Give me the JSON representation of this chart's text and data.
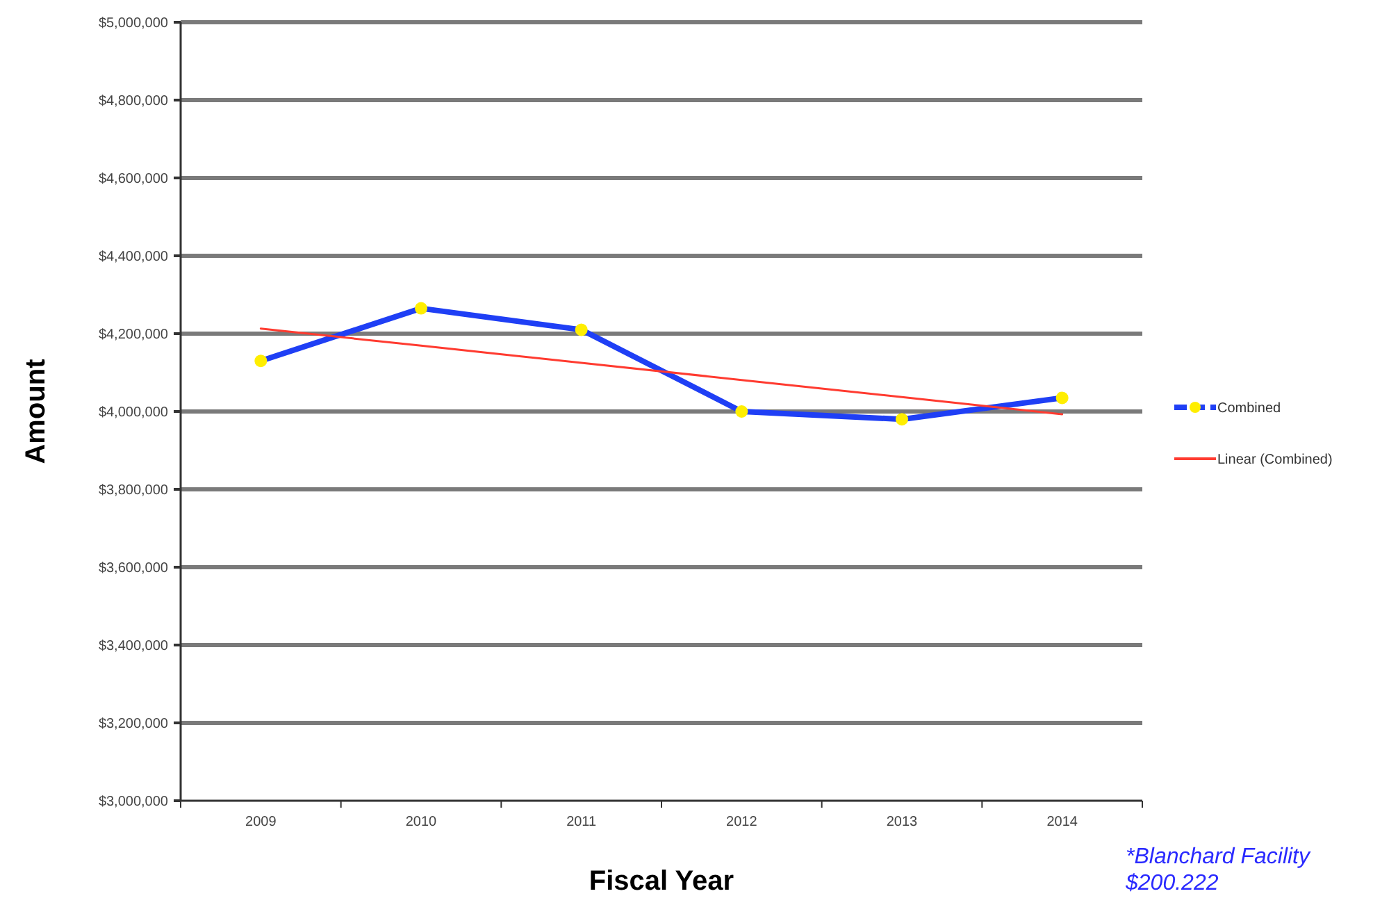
{
  "chart_data": {
    "type": "line",
    "xlabel": "Fiscal Year",
    "ylabel": "Amount",
    "categories": [
      "2009",
      "2010",
      "2011",
      "2012",
      "2013",
      "2014"
    ],
    "series": [
      {
        "name": "Combined",
        "color": "#1f3ff5",
        "values": [
          4130000,
          4265000,
          4210000,
          4000000,
          3980000,
          4035000
        ],
        "marker": "circle"
      },
      {
        "name": "Linear (Combined)",
        "color": "#ff3b30",
        "values": [
          4213000,
          4169000,
          4125000,
          4081000,
          4037000,
          3993000
        ],
        "marker": "none"
      }
    ],
    "ylim": [
      3000000,
      5000000
    ],
    "yticks": [
      {
        "value": 3000000,
        "label": "$3,000,000"
      },
      {
        "value": 3200000,
        "label": "$3,200,000"
      },
      {
        "value": 3400000,
        "label": "$3,400,000"
      },
      {
        "value": 3600000,
        "label": "$3,600,000"
      },
      {
        "value": 3800000,
        "label": "$3,800,000"
      },
      {
        "value": 4000000,
        "label": "$4,000,000"
      },
      {
        "value": 4200000,
        "label": "$4,200,000"
      },
      {
        "value": 4400000,
        "label": "$4,400,000"
      },
      {
        "value": 4600000,
        "label": "$4,600,000"
      },
      {
        "value": 4800000,
        "label": "$4,800,000"
      },
      {
        "value": 5000000,
        "label": "$5,000,000"
      }
    ],
    "grid": "y",
    "legend": "right",
    "annotations": [
      "*Blanchard Facility $200.222"
    ]
  }
}
